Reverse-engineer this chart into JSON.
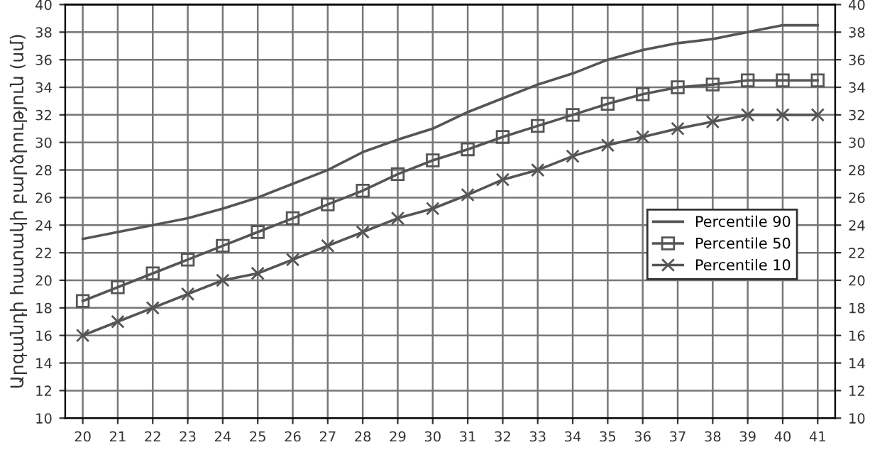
{
  "chart_data": {
    "type": "line",
    "ylabel": "Արգանդի հատակի բարձրություն (սմ)",
    "x": [
      20,
      21,
      22,
      23,
      24,
      25,
      26,
      27,
      28,
      29,
      30,
      31,
      32,
      33,
      34,
      35,
      36,
      37,
      38,
      39,
      40,
      41
    ],
    "series": [
      {
        "name": "Percentile 90",
        "color": "#555555",
        "marker": "none",
        "values": [
          23,
          23.5,
          24,
          24.5,
          25.2,
          26,
          27,
          28,
          29.3,
          30.2,
          31,
          32.2,
          33.2,
          34.2,
          35,
          36,
          36.7,
          37.2,
          37.5,
          38,
          38.5,
          38.5
        ]
      },
      {
        "name": "Percentile 50",
        "color": "#555555",
        "marker": "square",
        "values": [
          18.5,
          19.5,
          20.5,
          21.5,
          22.5,
          23.5,
          24.5,
          25.5,
          26.5,
          27.7,
          28.7,
          29.5,
          30.4,
          31.2,
          32,
          32.8,
          33.5,
          34,
          34.2,
          34.5,
          34.5,
          34.5
        ]
      },
      {
        "name": "Percentile 10",
        "color": "#555555",
        "marker": "cross",
        "values": [
          16,
          17,
          18,
          19,
          20,
          20.5,
          21.5,
          22.5,
          23.5,
          24.5,
          25.2,
          26.2,
          27.3,
          28,
          29,
          29.8,
          30.4,
          31,
          31.5,
          32,
          32,
          32
        ]
      }
    ],
    "xlim": [
      19.5,
      41.5
    ],
    "xticks": [
      20,
      21,
      22,
      23,
      24,
      25,
      26,
      27,
      28,
      29,
      30,
      31,
      32,
      33,
      34,
      35,
      36,
      37,
      38,
      39,
      40,
      41
    ],
    "ylim": [
      10,
      40
    ],
    "yticks": [
      10,
      12,
      14,
      16,
      18,
      20,
      22,
      24,
      26,
      28,
      30,
      32,
      34,
      36,
      38,
      40
    ],
    "y2lim": [
      10,
      40
    ],
    "y2ticks": [
      10,
      12,
      14,
      16,
      18,
      20,
      22,
      24,
      26,
      28,
      30,
      32,
      34,
      36,
      38,
      40
    ],
    "grid": true,
    "legend": "right",
    "line_style": "solid"
  }
}
